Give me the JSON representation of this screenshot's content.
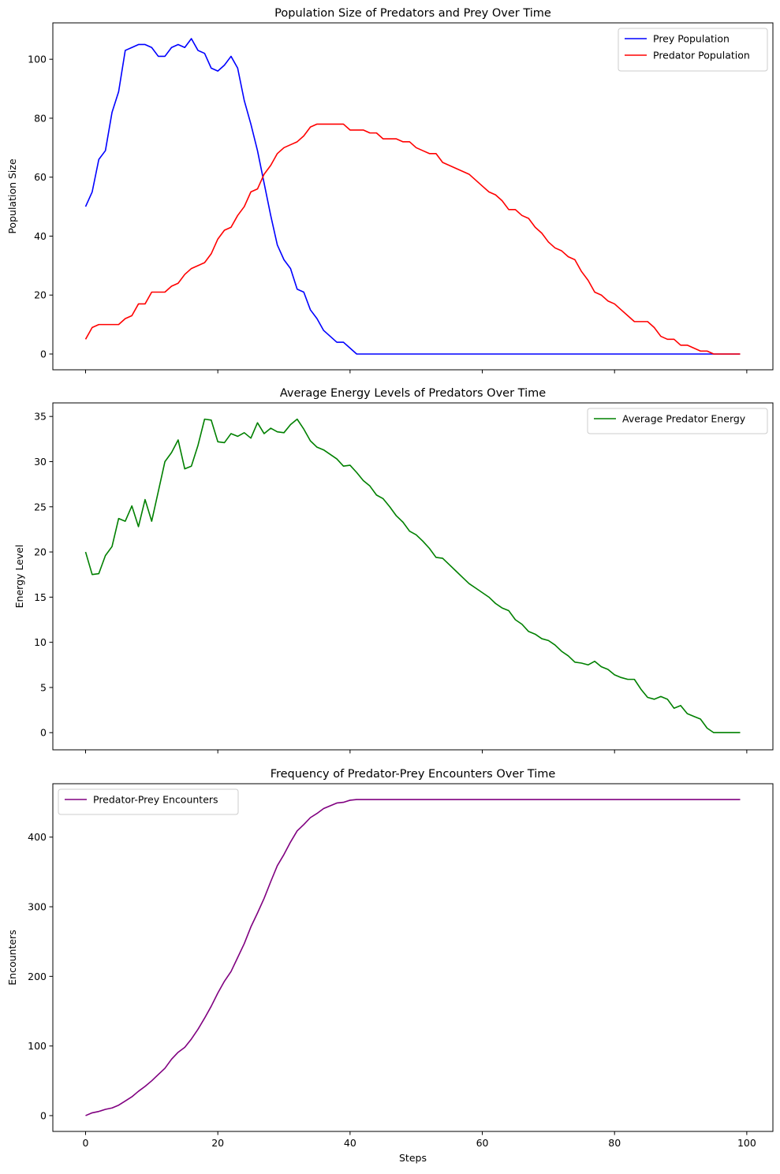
{
  "chart_data": [
    {
      "type": "line",
      "title": "Population Size of Predators and Prey Over Time",
      "xlabel": "",
      "ylabel": "Population Size",
      "xlim": [
        -4.95,
        103.95
      ],
      "ylim": [
        -5.35,
        112.35
      ],
      "xticks": [
        0,
        20,
        40,
        60,
        80,
        100
      ],
      "xtick_labels": [
        "",
        "",
        "",
        "",
        "",
        ""
      ],
      "yticks": [
        0,
        20,
        40,
        60,
        80,
        100
      ],
      "ytick_labels": [
        "0",
        "20",
        "40",
        "60",
        "80",
        "100"
      ],
      "legend_position": "top-right",
      "grid": false,
      "x_start": 0,
      "series": [
        {
          "name": "Prey Population",
          "color": "#0000ff",
          "values": [
            50,
            55,
            66,
            69,
            82,
            89,
            103,
            104,
            105,
            105,
            104,
            101,
            101,
            104,
            105,
            104,
            107,
            103,
            102,
            97,
            96,
            98,
            101,
            97,
            86,
            78,
            69,
            58,
            47,
            37,
            32,
            29,
            22,
            21,
            15,
            12,
            8,
            6,
            4,
            4,
            2,
            0,
            0,
            0,
            0,
            0,
            0,
            0,
            0,
            0,
            0,
            0,
            0,
            0,
            0,
            0,
            0,
            0,
            0,
            0,
            0,
            0,
            0,
            0,
            0,
            0,
            0,
            0,
            0,
            0,
            0,
            0,
            0,
            0,
            0,
            0,
            0,
            0,
            0,
            0,
            0,
            0,
            0,
            0,
            0,
            0,
            0,
            0,
            0,
            0,
            0,
            0,
            0,
            0,
            0,
            0,
            0,
            0,
            0,
            0
          ]
        },
        {
          "name": "Predator Population",
          "color": "#ff0000",
          "values": [
            5,
            9,
            10,
            10,
            10,
            10,
            12,
            13,
            17,
            17,
            21,
            21,
            21,
            23,
            24,
            27,
            29,
            30,
            31,
            34,
            39,
            42,
            43,
            47,
            50,
            55,
            56,
            61,
            64,
            68,
            70,
            71,
            72,
            74,
            77,
            78,
            78,
            78,
            78,
            78,
            76,
            76,
            76,
            75,
            75,
            73,
            73,
            73,
            72,
            72,
            70,
            69,
            68,
            68,
            65,
            64,
            63,
            62,
            61,
            59,
            57,
            55,
            54,
            52,
            49,
            49,
            47,
            46,
            43,
            41,
            38,
            36,
            35,
            33,
            32,
            28,
            25,
            21,
            20,
            18,
            17,
            15,
            13,
            11,
            11,
            11,
            9,
            6,
            5,
            5,
            3,
            3,
            2,
            1,
            1,
            0,
            0,
            0,
            0,
            0
          ]
        }
      ]
    },
    {
      "type": "line",
      "title": "Average Energy Levels of Predators Over Time",
      "xlabel": "",
      "ylabel": "Energy Level",
      "xlim": [
        -4.95,
        103.95
      ],
      "ylim": [
        -1.9,
        36.5
      ],
      "xticks": [
        0,
        20,
        40,
        60,
        80,
        100
      ],
      "xtick_labels": [
        "",
        "",
        "",
        "",
        "",
        ""
      ],
      "yticks": [
        0,
        5,
        10,
        15,
        20,
        25,
        30,
        35
      ],
      "ytick_labels": [
        "0",
        "5",
        "10",
        "15",
        "20",
        "25",
        "30",
        "35"
      ],
      "legend_position": "top-right",
      "grid": false,
      "x_start": 0,
      "series": [
        {
          "name": "Average Predator Energy",
          "color": "#008000",
          "values": [
            20,
            17.5,
            17.6,
            19.6,
            20.6,
            23.7,
            23.4,
            25.1,
            22.8,
            25.8,
            23.4,
            26.7,
            30,
            31,
            32.4,
            29.2,
            29.5,
            31.8,
            34.7,
            34.6,
            32.2,
            32.1,
            33.1,
            32.8,
            33.2,
            32.6,
            34.3,
            33.1,
            33.7,
            33.3,
            33.2,
            34.1,
            34.7,
            33.6,
            32.3,
            31.6,
            31.3,
            30.8,
            30.3,
            29.5,
            29.6,
            28.8,
            27.9,
            27.3,
            26.3,
            25.9,
            25,
            24,
            23.3,
            22.3,
            21.9,
            21.2,
            20.4,
            19.4,
            19.3,
            18.6,
            17.9,
            17.2,
            16.5,
            16,
            15.5,
            15,
            14.3,
            13.8,
            13.5,
            12.5,
            12,
            11.2,
            10.9,
            10.4,
            10.2,
            9.7,
            9,
            8.5,
            7.8,
            7.7,
            7.5,
            7.9,
            7.3,
            7,
            6.4,
            6.1,
            5.9,
            5.9,
            4.8,
            3.9,
            3.7,
            4,
            3.7,
            2.7,
            3,
            2.1,
            1.8,
            1.5,
            0.5,
            0,
            0,
            0,
            0,
            0
          ]
        }
      ]
    },
    {
      "type": "line",
      "title": "Frequency of Predator-Prey Encounters Over Time",
      "xlabel": "Steps",
      "ylabel": "Encounters",
      "xlim": [
        -4.95,
        103.95
      ],
      "ylim": [
        -22.7,
        476.7
      ],
      "xticks": [
        0,
        20,
        40,
        60,
        80,
        100
      ],
      "xtick_labels": [
        "0",
        "20",
        "40",
        "60",
        "80",
        "100"
      ],
      "yticks": [
        0,
        100,
        200,
        300,
        400
      ],
      "ytick_labels": [
        "0",
        "100",
        "200",
        "300",
        "400"
      ],
      "legend_position": "top-left",
      "grid": false,
      "x_start": 0,
      "series": [
        {
          "name": "Predator-Prey Encounters",
          "color": "#800080",
          "values": [
            0,
            4,
            6,
            9,
            11,
            15,
            21,
            27,
            35,
            42,
            50,
            59,
            68,
            81,
            91,
            98,
            110,
            124,
            140,
            157,
            176,
            193,
            207,
            227,
            247,
            271,
            291,
            312,
            336,
            359,
            375,
            393,
            409,
            418,
            428,
            434,
            441,
            445,
            449,
            450,
            453,
            454,
            454,
            454,
            454,
            454,
            454,
            454,
            454,
            454,
            454,
            454,
            454,
            454,
            454,
            454,
            454,
            454,
            454,
            454,
            454,
            454,
            454,
            454,
            454,
            454,
            454,
            454,
            454,
            454,
            454,
            454,
            454,
            454,
            454,
            454,
            454,
            454,
            454,
            454,
            454,
            454,
            454,
            454,
            454,
            454,
            454,
            454,
            454,
            454,
            454,
            454,
            454,
            454,
            454,
            454,
            454,
            454,
            454,
            454
          ]
        }
      ]
    }
  ]
}
